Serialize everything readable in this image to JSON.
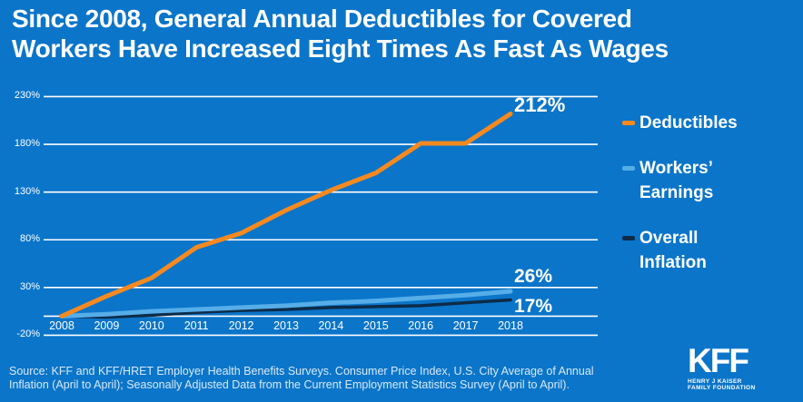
{
  "title": {
    "line1": "Since 2008, General Annual Deductibles for Covered",
    "line2": "Workers Have Increased Eight Times As Fast As Wages"
  },
  "chart_data": {
    "type": "line",
    "title": "Since 2008, General Annual Deductibles for Covered Workers Have Increased Eight Times As Fast As Wages",
    "x": [
      "2008",
      "2009",
      "2010",
      "2011",
      "2012",
      "2013",
      "2014",
      "2015",
      "2016",
      "2017",
      "2018"
    ],
    "series": [
      {
        "id": "deductibles",
        "name": "Deductibles",
        "color": "#F6891F",
        "values": [
          0,
          21,
          40,
          72,
          87,
          111,
          132,
          150,
          181,
          181,
          212
        ],
        "end_label": "212%"
      },
      {
        "id": "workers-earnings",
        "name": "Workers' Earnings",
        "color": "#56ADE8",
        "values": [
          0,
          2,
          5,
          7,
          9,
          11,
          14,
          16,
          19,
          22,
          26
        ],
        "end_label": "26%"
      },
      {
        "id": "overall-inflation",
        "name": "Overall Inflation",
        "color": "#0D2B48",
        "values": [
          0,
          -1,
          1,
          4,
          6,
          7,
          9,
          10,
          11,
          14,
          17
        ],
        "end_label": "17%"
      }
    ],
    "ylim": [
      -20,
      230
    ],
    "yticks": [
      {
        "value": 230,
        "label": "230%"
      },
      {
        "value": 180,
        "label": "180%"
      },
      {
        "value": 130,
        "label": "130%"
      },
      {
        "value": 80,
        "label": "80%"
      },
      {
        "value": 30,
        "label": "30%"
      },
      {
        "value": -20,
        "label": "-20%"
      }
    ],
    "baseline_value": 0,
    "grid": true,
    "legend_position": "right",
    "grid_color": "#FFFFFF"
  },
  "legend": {
    "items": [
      {
        "id": "deductibles",
        "color": "#F6891F",
        "lines": [
          "Deductibles"
        ]
      },
      {
        "id": "workers-earnings",
        "color": "#56ADE8",
        "lines": [
          "Workers’",
          "Earnings"
        ]
      },
      {
        "id": "overall-inflation",
        "color": "#0D2B48",
        "lines": [
          "Overall",
          "Inflation"
        ]
      }
    ]
  },
  "footer": {
    "source_line1": "Source: KFF and KFF/HRET Employer Health Benefits Surveys. Consumer Price Index, U.S. City Average of Annual",
    "source_line2": "Inflation (April to April); Seasonally Adjusted Data from the Current Employment Statistics Survey (April to April).",
    "logo": {
      "main": "KFF",
      "sub_line1": "HENRY J KAISER",
      "sub_line2": "FAMILY FOUNDATION"
    }
  },
  "colors": {
    "background": "#0B75C9",
    "deductibles": "#F6891F",
    "workers_earnings": "#56ADE8",
    "overall_inflation": "#0D2B48",
    "text": "#FFFFFF"
  }
}
